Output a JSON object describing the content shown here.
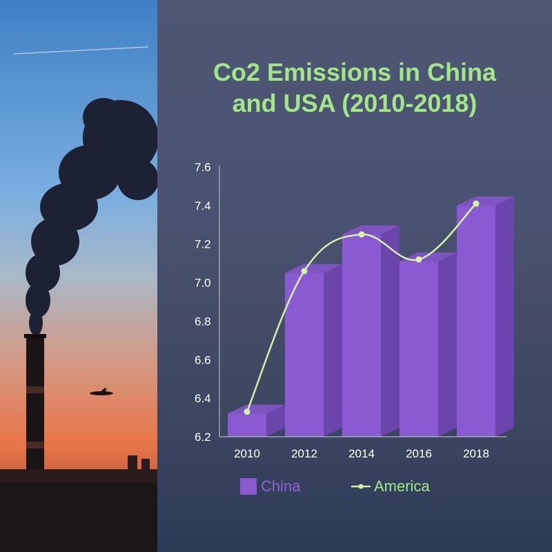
{
  "title_line1": "Co2 Emissions in China",
  "title_line2": "and USA (2010-2018)",
  "colors": {
    "title": "#a3e689",
    "bar_front": "#8a5bd0",
    "bar_side": "#6b45ab",
    "bar_top": "#7d54c2",
    "line": "#d3f2a8",
    "axis": "#c8cbd4"
  },
  "chart_data": {
    "type": "bar",
    "categories": [
      "2010",
      "2012",
      "2014",
      "2016",
      "2018"
    ],
    "ylim": [
      6.2,
      7.6
    ],
    "yticks": [
      "6.2",
      "6.4",
      "6.6",
      "6.8",
      "7.0",
      "7.2",
      "7.4",
      "7.6"
    ],
    "series": [
      {
        "name": "China",
        "type": "bar",
        "values": [
          6.32,
          7.05,
          7.25,
          7.11,
          7.4
        ]
      },
      {
        "name": "America",
        "type": "line",
        "values": [
          6.33,
          7.06,
          7.25,
          7.12,
          7.41
        ]
      }
    ],
    "xlabel": "",
    "ylabel": "",
    "grid": false,
    "legend": "bottom"
  }
}
